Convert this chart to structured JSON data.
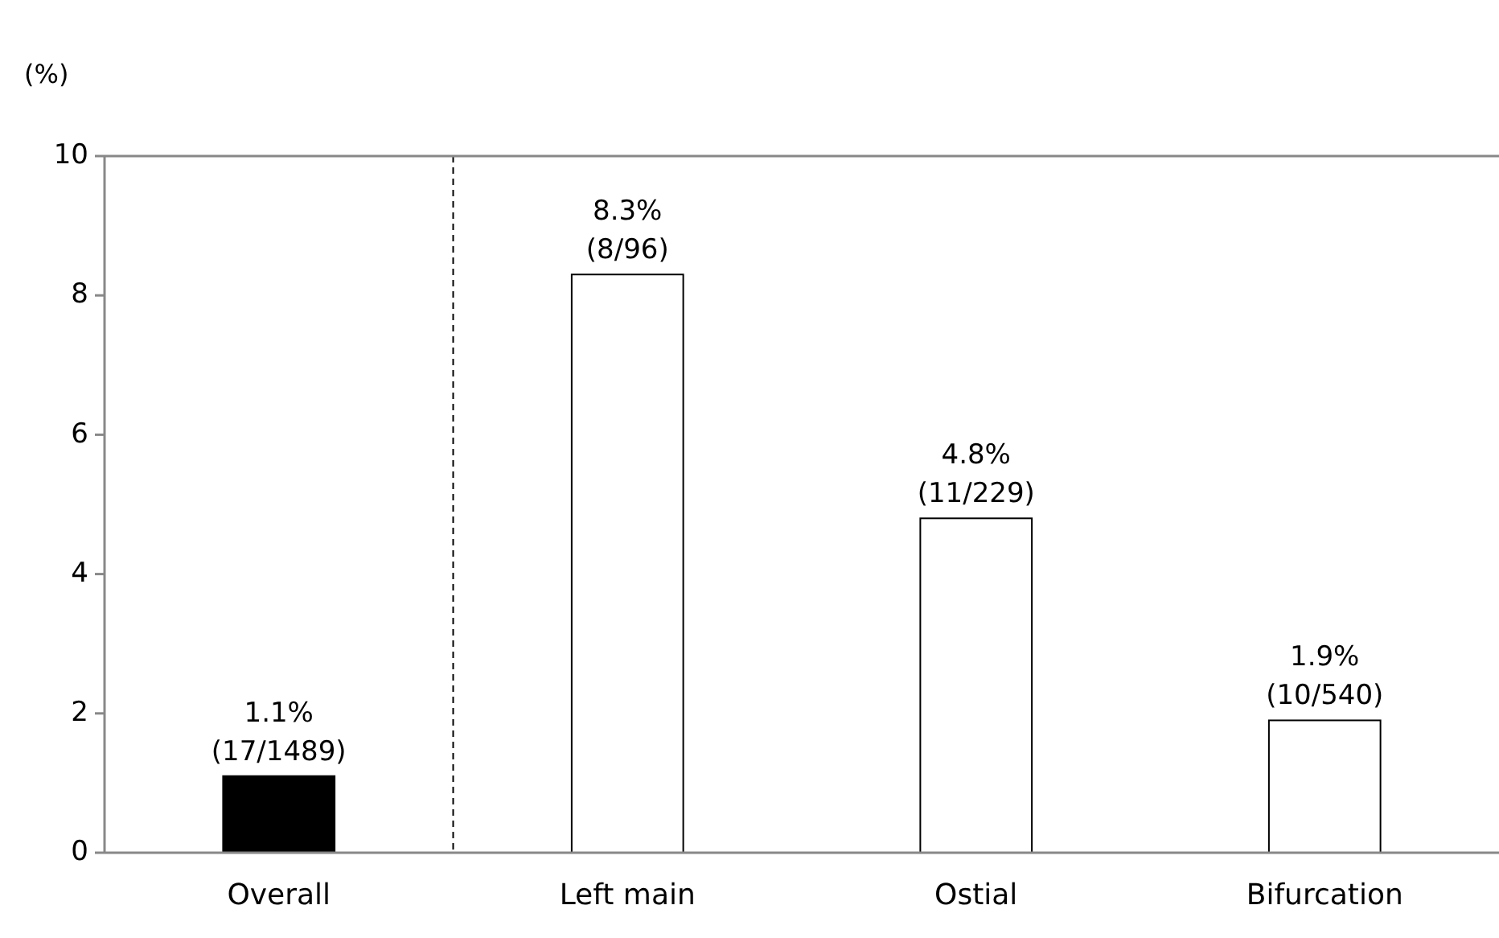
{
  "chart_data": {
    "type": "bar",
    "ylabel": "(%)",
    "categories": [
      "Overall",
      "Left main",
      "Ostial",
      "Bifurcation"
    ],
    "values": [
      1.1,
      8.3,
      4.8,
      1.9
    ],
    "colors": [
      "#000000",
      "#ffffff",
      "#ffffff",
      "#ffffff"
    ],
    "value_labels": [
      "1.1%\n(17/1489)",
      "8.3%\n(8/96)",
      "4.8%\n(11/229)",
      "1.9%\n(10/540)"
    ],
    "ylim": [
      0,
      10
    ],
    "yticks": [
      0,
      2,
      4,
      6,
      8,
      10
    ],
    "grid": false
  }
}
